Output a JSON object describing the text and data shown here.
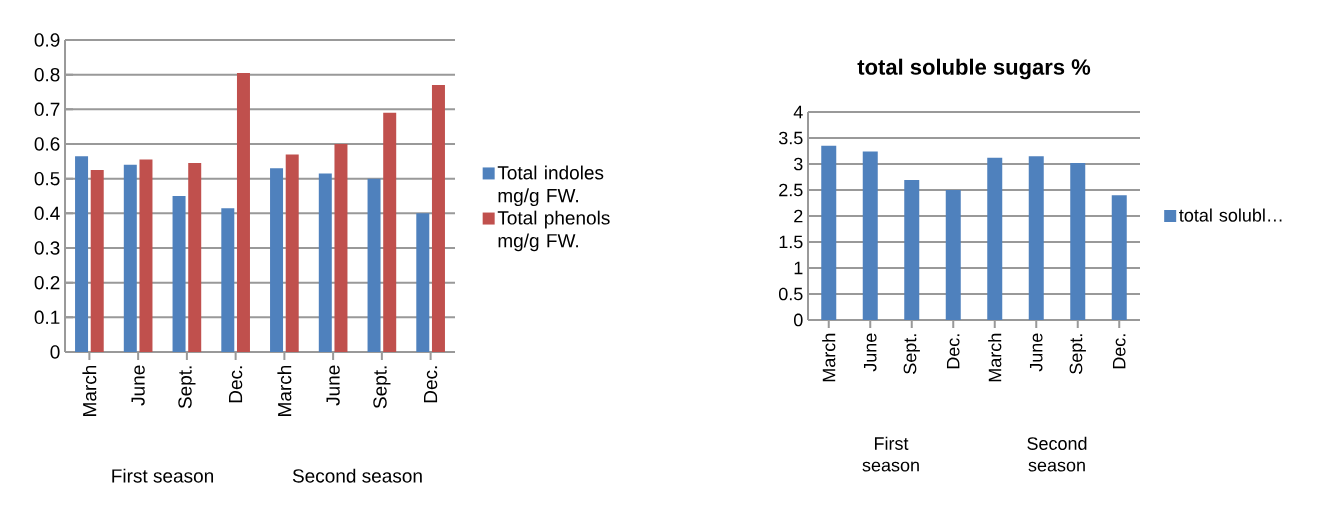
{
  "chart_data": [
    {
      "type": "bar",
      "categories": [
        "March",
        "June",
        "Sept.",
        "Dec.",
        "March",
        "June",
        "Sept.",
        "Dec."
      ],
      "series": [
        {
          "name": "Total indoles mg/g FW.",
          "color": "#4f81bd",
          "values": [
            0.565,
            0.54,
            0.45,
            0.415,
            0.53,
            0.515,
            0.5,
            0.4
          ]
        },
        {
          "name": "Total phenols mg/g FW.",
          "color": "#c0504d",
          "values": [
            0.525,
            0.555,
            0.545,
            0.805,
            0.57,
            0.6,
            0.69,
            0.77
          ]
        }
      ],
      "ylim": [
        0,
        0.9
      ],
      "yticks": [
        0,
        0.1,
        0.2,
        0.3,
        0.4,
        0.5,
        0.6,
        0.7,
        0.8,
        0.9
      ],
      "grid": "y",
      "legend": "right",
      "annotations": [
        "First season",
        "Second season"
      ]
    },
    {
      "type": "bar",
      "title": "total soluble sugars %",
      "categories": [
        "March",
        "June",
        "Sept.",
        "Dec.",
        "March",
        "June",
        "Sept.",
        "Dec."
      ],
      "series": [
        {
          "name": "total solubl…",
          "color": "#4f81bd",
          "values": [
            3.35,
            3.24,
            2.69,
            2.5,
            3.12,
            3.15,
            3.02,
            2.4
          ]
        }
      ],
      "ylim": [
        0,
        4
      ],
      "yticks": [
        0,
        0.5,
        1,
        1.5,
        2,
        2.5,
        3,
        3.5,
        4
      ],
      "grid": "y",
      "legend": "right",
      "annotations": [
        "First season",
        "Second season"
      ]
    }
  ]
}
